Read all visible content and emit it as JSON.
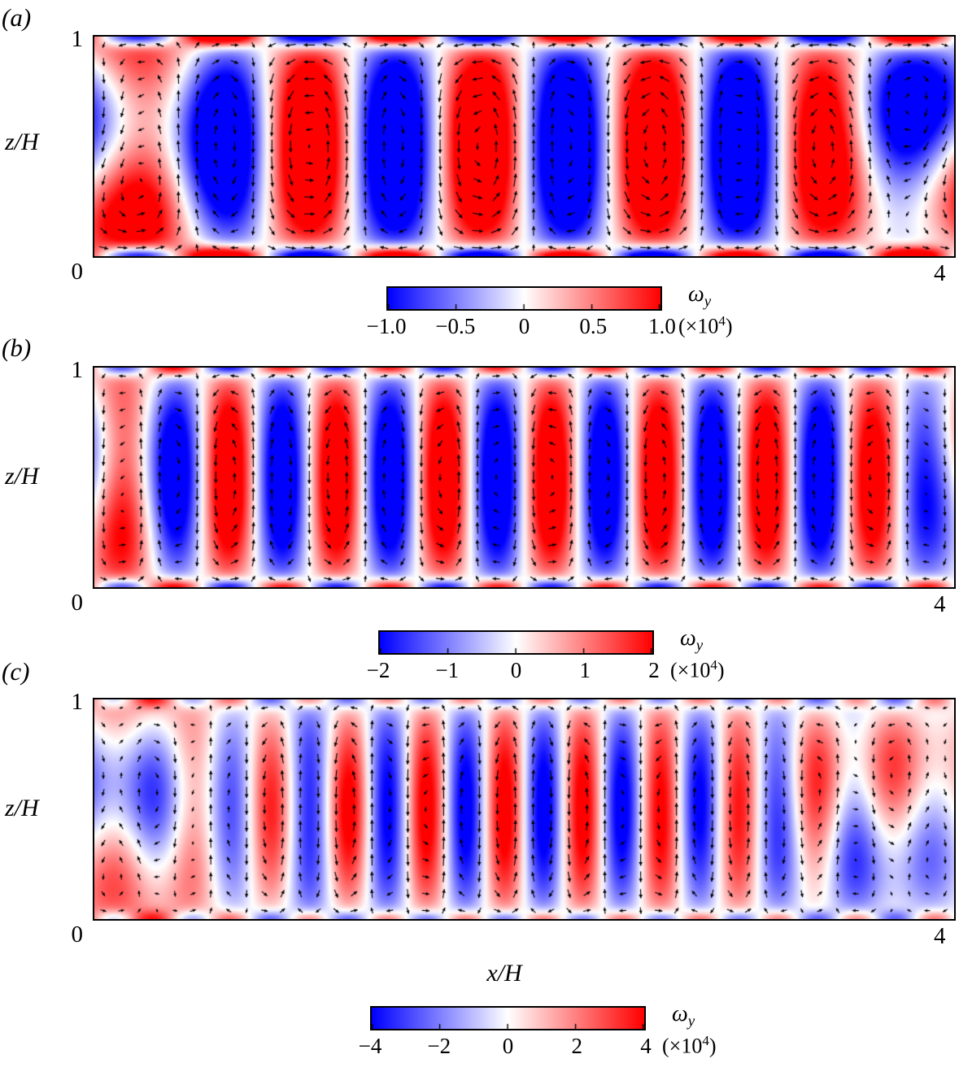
{
  "xlabel": "x/H",
  "panels": [
    {
      "label": "(a)",
      "ylabel": "z/H",
      "ytick_top": "1",
      "corner_tick": "0",
      "xtick_right": "4",
      "colorbar": {
        "ticks": [
          "−1.0",
          "−0.5",
          "0",
          "0.5",
          "1.0"
        ],
        "symbol": "ω",
        "symbol_sub": "y",
        "scale_prefix": "(×10",
        "scale_exp": "4",
        "scale_suffix": ")"
      }
    },
    {
      "label": "(b)",
      "ylabel": "z/H",
      "ytick_top": "1",
      "corner_tick": "0",
      "xtick_right": "4",
      "colorbar": {
        "ticks": [
          "−2",
          "−1",
          "0",
          "1",
          "2"
        ],
        "symbol": "ω",
        "symbol_sub": "y",
        "scale_prefix": "(×10",
        "scale_exp": "4",
        "scale_suffix": ")"
      }
    },
    {
      "label": "(c)",
      "ylabel": "z/H",
      "ytick_top": "1",
      "corner_tick": "0",
      "xtick_right": "4",
      "colorbar": {
        "ticks": [
          "−4",
          "−2",
          "0",
          "2",
          "4"
        ],
        "symbol": "ω",
        "symbol_sub": "y",
        "scale_prefix": "(×10",
        "scale_exp": "4",
        "scale_suffix": ")"
      }
    }
  ],
  "chart_data": [
    {
      "type": "heatmap",
      "panel": "a",
      "quantity": "spanwise vorticity omega_y with in-plane (u,w) velocity vectors",
      "x_range": [
        0,
        4
      ],
      "z_range": [
        0,
        1
      ],
      "xlabel": "x/H",
      "ylabel": "z/H",
      "colormap": "blue-white-red",
      "value_scale": 10000,
      "vmin": -1.0,
      "vmax": 1.0,
      "colorbar_ticks": [
        -1.0,
        -0.5,
        0,
        0.5,
        1.0
      ],
      "n_vortex_bands": 10,
      "synthesis": {
        "k": 7.854,
        "gain": 1.8,
        "wall_amp": 0.85,
        "wall_sigma": 0.045,
        "edge_sigma": 0.55,
        "edge_mix": 0.5,
        "edge_amp": 0.45,
        "edge_k": 1.6,
        "mean_amp": 0.35,
        "quiver": {
          "nx": 46,
          "nz": 13,
          "max_len": 17
        }
      }
    },
    {
      "type": "heatmap",
      "panel": "b",
      "quantity": "spanwise vorticity omega_y with in-plane (u,w) velocity vectors",
      "x_range": [
        0,
        4
      ],
      "z_range": [
        0,
        1
      ],
      "xlabel": "x/H",
      "ylabel": "z/H",
      "colormap": "blue-white-red",
      "value_scale": 10000,
      "vmin": -2.0,
      "vmax": 2.0,
      "colorbar_ticks": [
        -2,
        -1,
        0,
        1,
        2
      ],
      "n_vortex_bands": 16,
      "synthesis": {
        "k": 12.566,
        "gain": 1.45,
        "wall_amp": 0.7,
        "wall_sigma": 0.04,
        "edge_sigma": 0.32,
        "edge_mix": 0.4,
        "edge_amp": 0.3,
        "edge_k": 2.2,
        "mean_amp": 0.18,
        "quiver": {
          "nx": 46,
          "nz": 13,
          "max_len": 16
        }
      }
    },
    {
      "type": "heatmap",
      "panel": "c",
      "quantity": "spanwise vorticity omega_y with in-plane (u,w) velocity vectors",
      "x_range": [
        0,
        4
      ],
      "z_range": [
        0,
        1
      ],
      "xlabel": "x/H",
      "ylabel": "z/H",
      "colormap": "blue-white-red",
      "value_scale": 10000,
      "vmin": -4.0,
      "vmax": 4.0,
      "colorbar_ticks": [
        -4,
        -2,
        0,
        2,
        4
      ],
      "n_vortex_bands": 22,
      "synthesis": {
        "k": 17.279,
        "gain": 1.15,
        "wall_amp": 0.5,
        "wall_sigma": 0.04,
        "edge_sigma": 0.85,
        "edge_mix": 0.78,
        "edge_amp": 0.5,
        "edge_k": 2.7,
        "mean_amp": 0.12,
        "quiver": {
          "nx": 48,
          "nz": 13,
          "max_len": 16
        }
      }
    }
  ]
}
